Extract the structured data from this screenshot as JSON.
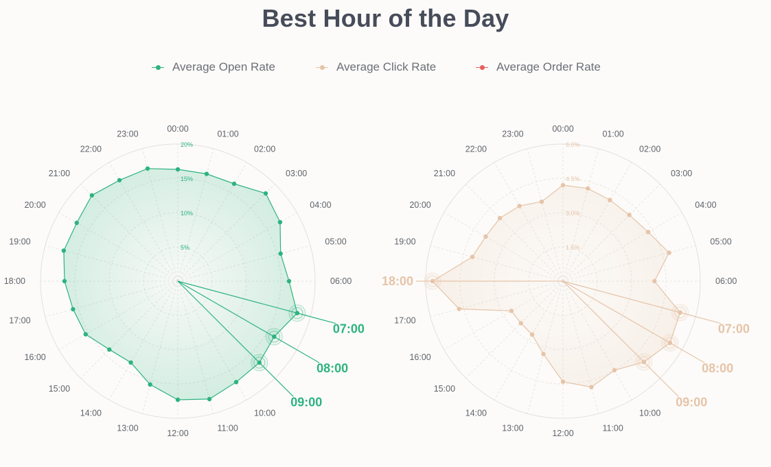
{
  "title": "Best Hour of the Day",
  "legend": [
    {
      "label": "Average Open Rate",
      "color": "#2db37f"
    },
    {
      "label": "Average Click Rate",
      "color": "#e6c4a8"
    },
    {
      "label": "Average Order Rate",
      "color": "#e8605c"
    }
  ],
  "chart_data": [
    {
      "type": "radar",
      "series_name": "Average Open Rate",
      "color": "#2db37f",
      "angular_labels": [
        "00:00",
        "01:00",
        "02:00",
        "03:00",
        "04:00",
        "05:00",
        "06:00",
        "07:00",
        "08:00",
        "09:00",
        "10:00",
        "11:00",
        "12:00",
        "13:00",
        "14:00",
        "15:00",
        "16:00",
        "17:00",
        "18:00",
        "19:00",
        "20:00",
        "21:00",
        "22:00",
        "23:00"
      ],
      "values": [
        16.3,
        16.2,
        16.4,
        18.1,
        17.2,
        15.5,
        16.2,
        18.0,
        16.2,
        16.8,
        17.0,
        17.8,
        17.3,
        15.6,
        13.7,
        14.1,
        15.5,
        15.8,
        16.5,
        17.2,
        17.0,
        17.7,
        17.0,
        17.0
      ],
      "radial_ticks": [
        "5%",
        "10%",
        "15%",
        "20%"
      ],
      "rmax": 20,
      "highlights": [
        "07:00",
        "08:00",
        "09:00"
      ]
    },
    {
      "type": "radar",
      "series_name": "Average Click Rate",
      "color": "#e6c4a8",
      "angular_labels": [
        "00:00",
        "01:00",
        "02:00",
        "03:00",
        "04:00",
        "05:00",
        "06:00",
        "07:00",
        "08:00",
        "09:00",
        "10:00",
        "11:00",
        "12:00",
        "13:00",
        "14:00",
        "15:00",
        "16:00",
        "17:00",
        "18:00",
        "19:00",
        "20:00",
        "21:00",
        "22:00",
        "23:00"
      ],
      "values": [
        4.2,
        4.2,
        4.1,
        4.1,
        4.3,
        4.8,
        4.0,
        5.3,
        5.4,
        5.0,
        4.5,
        4.8,
        4.4,
        3.3,
        2.7,
        2.6,
        2.6,
        4.7,
        5.7,
        4.1,
        3.9,
        3.9,
        3.8,
        3.6
      ],
      "radial_ticks": [
        "1.5%",
        "3.0%",
        "4.5%",
        "6.0%"
      ],
      "rmax": 6,
      "highlights": [
        "07:00",
        "08:00",
        "09:00",
        "18:00"
      ]
    }
  ]
}
